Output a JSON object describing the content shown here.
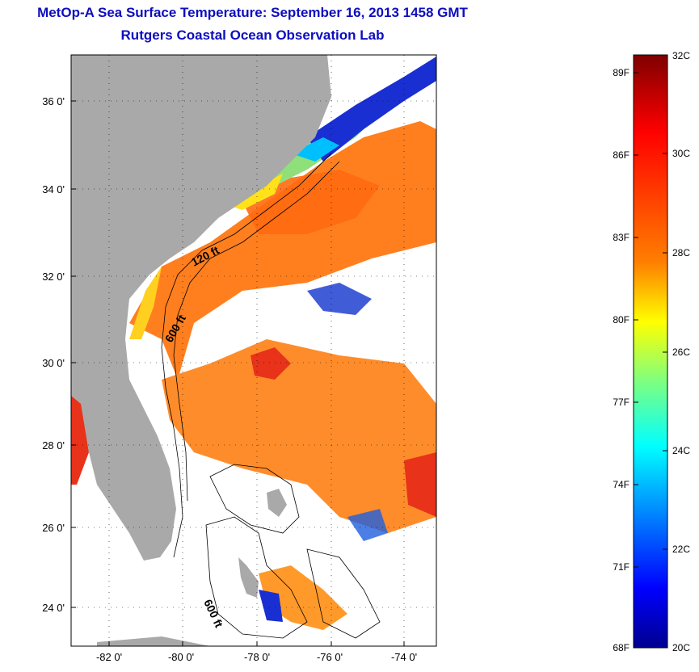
{
  "titles": {
    "line1": "MetOp-A Sea Surface Temperature:  September 16, 2013 1458 GMT",
    "line2": "Rutgers Coastal Ocean Observation Lab"
  },
  "map": {
    "x_ticks": [
      "-82 0'",
      "-80 0'",
      "-78 0'",
      "-76 0'",
      "-74 0'"
    ],
    "y_ticks": [
      "36 0'",
      "34 0'",
      "32 0'",
      "30 0'",
      "28 0'",
      "26 0'",
      "24 0'"
    ],
    "contour_labels": [
      "120 ft",
      "600 ft",
      "600 ft"
    ],
    "colors": {
      "land": "#a9a9a9",
      "cloud": "#ffffff",
      "warm": "#ff7a1a",
      "hot": "#e8321a",
      "cool": "#1a2fd1"
    }
  },
  "colorbar": {
    "fahrenheit": [
      "89F",
      "86F",
      "83F",
      "80F",
      "77F",
      "74F",
      "71F",
      "68F"
    ],
    "celsius": [
      "32C",
      "30C",
      "28C",
      "26C",
      "24C",
      "22C",
      "20C"
    ],
    "gradient": [
      "#7f0000",
      "#ff0000",
      "#ff7f00",
      "#ffff00",
      "#7fff7f",
      "#00ffff",
      "#007fff",
      "#0000ff",
      "#00008f"
    ]
  }
}
